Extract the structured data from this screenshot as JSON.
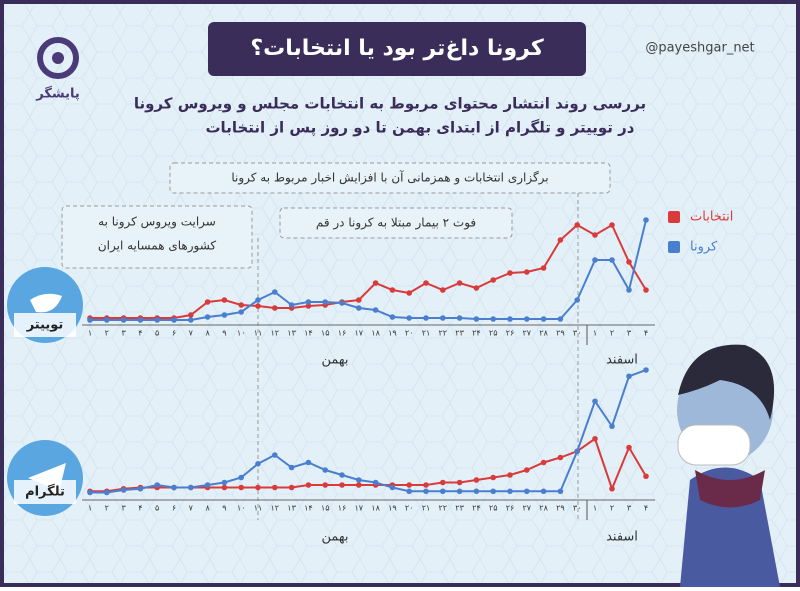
{
  "header": {
    "title": "کرونا داغ‌تر بود یا انتخابات؟",
    "handle": "@payeshgar_net",
    "logo": "پایشگر",
    "subtitle": [
      "بررسی روند انتشار محتوای مربوط به انتخابات مجلس و ویروس کرونا",
      "در توییتر و تلگرام از ابتدای بهمن تا دو روز پس از انتخابات"
    ]
  },
  "chart_data": [
    {
      "type": "line",
      "title": "توییتر",
      "categories": [
        "۱",
        "۲",
        "۳",
        "۴",
        "۵",
        "۶",
        "۷",
        "۸",
        "۹",
        "۱۰",
        "۱۱",
        "۱۲",
        "۱۳",
        "۱۴",
        "۱۵",
        "۱۶",
        "۱۷",
        "۱۸",
        "۱۹",
        "۲۰",
        "۲۱",
        "۲۲",
        "۲۳",
        "۲۴",
        "۲۵",
        "۲۶",
        "۲۷",
        "۲۸",
        "۲۹",
        "۳۰",
        "۱",
        "۲",
        "۳",
        "۴"
      ],
      "month_labels": [
        "بهمن",
        "اسفند"
      ],
      "annotations": [
        [
          "برگزاری انتخابات و همزمانی آن با افزایش اخبار مربوط به کرونا"
        ],
        [
          "فوت ۲ بیمار مبتلا به کرونا در قم"
        ],
        [
          "سرایت ویروس کرونا به",
          "کشورهای همسایه ایران"
        ]
      ],
      "ylim": [
        0,
        100
      ],
      "series": [
        {
          "name": "انتخابات",
          "color": "#d93b3b",
          "values": [
            2,
            2,
            2,
            2,
            2,
            2,
            5,
            18,
            20,
            15,
            14,
            12,
            12,
            14,
            15,
            18,
            20,
            37,
            30,
            27,
            37,
            30,
            37,
            32,
            40,
            47,
            48,
            52,
            80,
            95,
            85,
            95,
            58,
            30
          ]
        },
        {
          "name": "کرونا",
          "color": "#4a7fd0",
          "values": [
            0,
            0,
            0,
            0,
            0,
            0,
            0,
            3,
            5,
            8,
            20,
            28,
            15,
            18,
            18,
            17,
            12,
            10,
            3,
            2,
            2,
            2,
            2,
            1,
            1,
            1,
            1,
            1,
            1,
            20,
            60,
            60,
            30,
            100
          ]
        }
      ]
    },
    {
      "type": "line",
      "title": "تلگرام",
      "categories": [
        "۱",
        "۲",
        "۳",
        "۴",
        "۵",
        "۶",
        "۷",
        "۸",
        "۹",
        "۱۰",
        "۱۱",
        "۱۲",
        "۱۳",
        "۱۴",
        "۱۵",
        "۱۶",
        "۱۷",
        "۱۸",
        "۱۹",
        "۲۰",
        "۲۱",
        "۲۲",
        "۲۳",
        "۲۴",
        "۲۵",
        "۲۶",
        "۲۷",
        "۲۸",
        "۲۹",
        "۳۰",
        "۱",
        "۲",
        "۳",
        "۴"
      ],
      "month_labels": [
        "بهمن",
        "اسفند"
      ],
      "ylim": [
        0,
        100
      ],
      "series": [
        {
          "color": "#d93b3b",
          "values": [
            3,
            3,
            5,
            6,
            6,
            6,
            6,
            6,
            6,
            6,
            6,
            6,
            6,
            8,
            8,
            8,
            8,
            8,
            8,
            8,
            8,
            10,
            10,
            12,
            14,
            16,
            20,
            26,
            30,
            35,
            45,
            5,
            38,
            15
          ]
        },
        {
          "color": "#4a7fd0",
          "values": [
            2,
            2,
            4,
            5,
            8,
            6,
            6,
            8,
            10,
            14,
            25,
            32,
            22,
            26,
            20,
            16,
            12,
            10,
            6,
            3,
            3,
            3,
            3,
            3,
            3,
            3,
            3,
            3,
            3,
            35,
            75,
            55,
            95,
            100
          ]
        }
      ]
    }
  ]
}
